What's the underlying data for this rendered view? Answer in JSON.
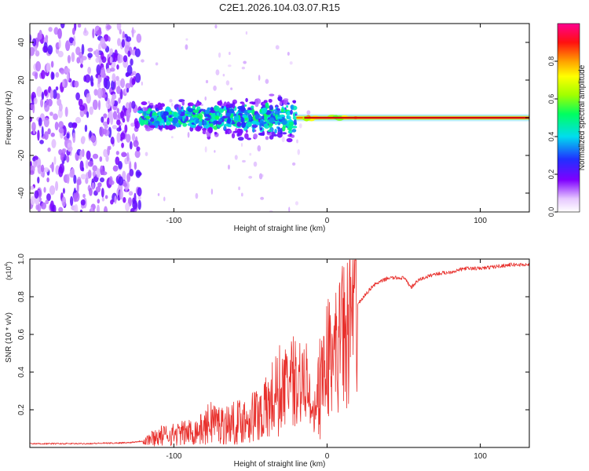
{
  "title": "C2E1.2026.104.03.07.R15",
  "chart_data": [
    {
      "type": "heatmap",
      "xlabel": "Height of straight line (km)",
      "ylabel": "Frequency (Hz)",
      "xlim": [
        -194,
        132
      ],
      "ylim": [
        -50,
        50
      ],
      "xticks": [
        -100,
        0,
        100
      ],
      "xtick_labels": [
        "-100",
        "0",
        "100"
      ],
      "yticks": [
        -40,
        -20,
        0,
        20,
        40
      ],
      "ytick_labels": [
        "-40",
        "-20",
        "0",
        "20",
        "40"
      ],
      "colorbar": {
        "label": "Normalized spectral amplitude",
        "range": [
          0,
          1
        ],
        "ticks": [
          0.0,
          0.2,
          0.4,
          0.6,
          0.8
        ],
        "tick_labels": [
          "0.0",
          "0.2",
          "0.4",
          "0.6",
          "0.8"
        ]
      },
      "regions": [
        {
          "name": "scattered-noise",
          "x_range": [
            -194,
            -122
          ],
          "freq_range": [
            -50,
            50
          ],
          "amplitude": 0.2
        },
        {
          "name": "noisy-band",
          "x_range": [
            -122,
            -20
          ],
          "freq_range": [
            -14,
            14
          ],
          "amplitude": 0.35
        },
        {
          "name": "carrier-line",
          "x_range": [
            -20,
            132
          ],
          "freq": 0,
          "amplitude": 1.0
        }
      ]
    },
    {
      "type": "line",
      "xlabel": "Height of straight line (km)",
      "ylabel": "SNR (10 * v/v)",
      "y_multiplier_label": "(x10",
      "y_multiplier_exp": "4",
      "y_multiplier_close": ")",
      "xlim": [
        -194,
        132
      ],
      "ylim": [
        0,
        1.0
      ],
      "xticks": [
        -100,
        0,
        100
      ],
      "xtick_labels": [
        "-100",
        "0",
        "100"
      ],
      "yticks": [
        0.2,
        0.4,
        0.6,
        0.8,
        1.0
      ],
      "ytick_labels": [
        "0.2",
        "0.4",
        "0.6",
        "0.8",
        "1.0"
      ],
      "series": [
        {
          "name": "SNR",
          "color": "#e8302c",
          "x": [
            -194,
            -160,
            -130,
            -120,
            -110,
            -100,
            -90,
            -80,
            -75,
            -70,
            -60,
            -50,
            -40,
            -35,
            -30,
            -25,
            -20,
            -16,
            -12,
            -10,
            -5,
            0,
            5,
            10,
            15,
            20,
            30,
            40,
            50,
            55,
            60,
            70,
            80,
            90,
            100,
            110,
            120,
            132
          ],
          "values": [
            0.02,
            0.02,
            0.025,
            0.035,
            0.06,
            0.07,
            0.08,
            0.1,
            0.15,
            0.12,
            0.13,
            0.16,
            0.2,
            0.26,
            0.3,
            0.34,
            0.36,
            0.38,
            0.3,
            0.12,
            0.35,
            0.48,
            0.5,
            0.58,
            0.68,
            0.76,
            0.86,
            0.9,
            0.9,
            0.85,
            0.89,
            0.92,
            0.93,
            0.95,
            0.95,
            0.96,
            0.97,
            0.97
          ]
        }
      ]
    }
  ]
}
